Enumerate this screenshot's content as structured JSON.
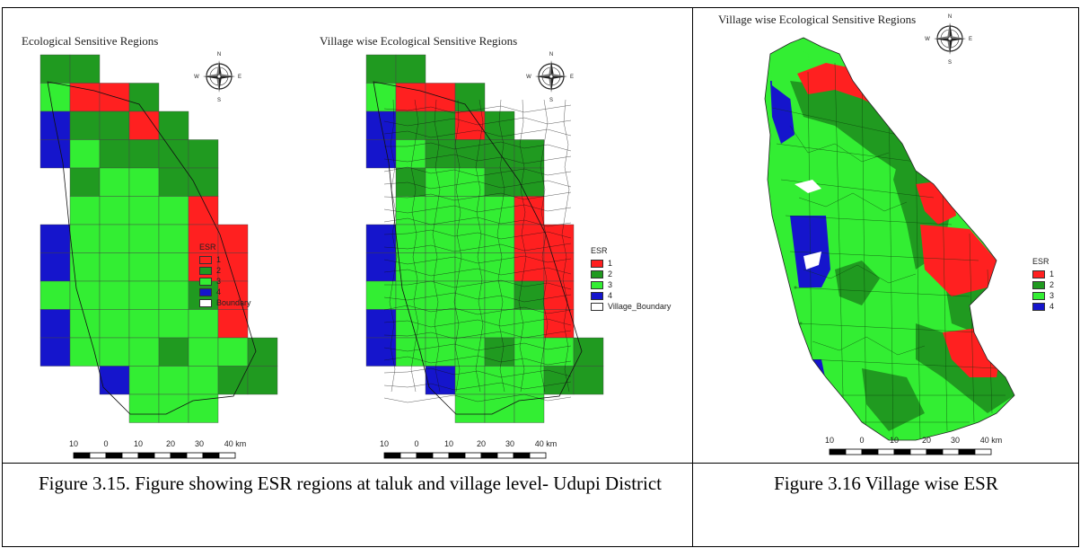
{
  "panel1": {
    "title": "Ecological Sensitive Regions",
    "legend_title": "ESR",
    "legend_items": [
      {
        "label": "1",
        "color": "#ff2020"
      },
      {
        "label": "2",
        "color": "#209a20"
      },
      {
        "label": "3",
        "color": "#33ee33"
      },
      {
        "label": "4",
        "color": "#1515cc"
      },
      {
        "label": "Boundary",
        "color": "#ffffff"
      }
    ]
  },
  "panel2": {
    "title": "Village wise Ecological Sensitive Regions",
    "legend_title": "ESR",
    "legend_items": [
      {
        "label": "1",
        "color": "#ff2020"
      },
      {
        "label": "2",
        "color": "#209a20"
      },
      {
        "label": "3",
        "color": "#33ee33"
      },
      {
        "label": "4",
        "color": "#1515cc"
      },
      {
        "label": "Village_Boundary",
        "color": "#ffffff"
      }
    ]
  },
  "panel3": {
    "title": "Village wise Ecological Sensitive Regions",
    "legend_title": "ESR",
    "legend_items": [
      {
        "label": "1",
        "color": "#ff2020"
      },
      {
        "label": "2",
        "color": "#209a20"
      },
      {
        "label": "3",
        "color": "#33ee33"
      },
      {
        "label": "4",
        "color": "#1515cc"
      }
    ]
  },
  "compass": {
    "n": "N",
    "s": "S",
    "e": "E",
    "w": "W"
  },
  "scale_labels": [
    "10",
    "0",
    "10",
    "20",
    "30",
    "40 km"
  ],
  "captions": {
    "left": "Figure 3.15. Figure showing ESR regions at taluk and village level- Udupi District",
    "right": "Figure 3.16 Village wise ESR"
  }
}
